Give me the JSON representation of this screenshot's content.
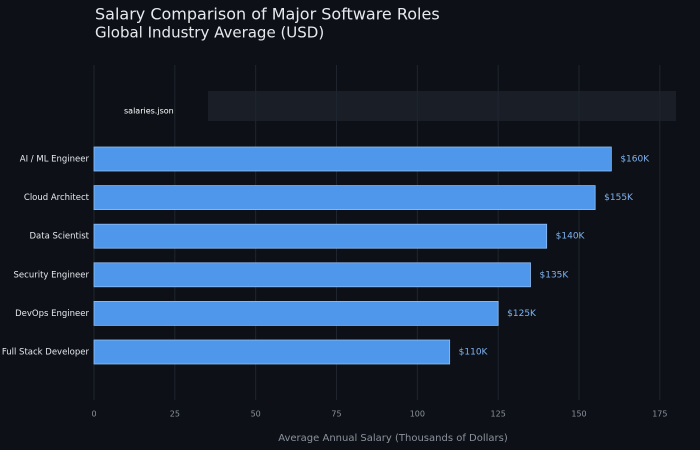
{
  "chart_data": {
    "type": "bar",
    "orientation": "horizontal",
    "title": "Salary Comparison of Major Software Roles",
    "subtitle": "Global Industry Average (USD)",
    "annotation": "salaries.json",
    "x_label": "Average Annual Salary (Thousands of Dollars)",
    "categories": [
      "AI / ML Engineer",
      "Cloud Architect",
      "Data Scientist",
      "Security Engineer",
      "DevOps Engineer",
      "Full Stack Developer"
    ],
    "values": [
      160,
      155,
      140,
      135,
      125,
      110
    ],
    "value_labels": [
      "$160K",
      "$155K",
      "$140K",
      "$135K",
      "$125K",
      "$110K"
    ],
    "color": "#4f97ea",
    "xlim": [
      0,
      180
    ],
    "xticks": [
      0,
      25,
      50,
      75,
      100,
      125,
      150,
      175
    ],
    "grid": true
  }
}
